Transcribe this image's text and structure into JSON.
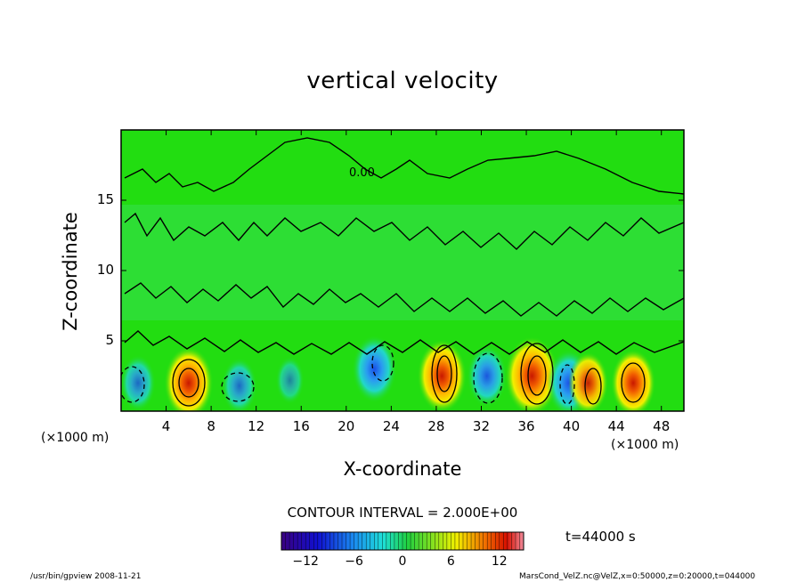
{
  "chart_data": {
    "type": "heatmap",
    "title": "vertical velocity",
    "xlabel": "X-coordinate",
    "ylabel": "Z-coordinate",
    "x_unit_label": "(×1000 m)",
    "xlim": [
      0,
      50
    ],
    "ylim": [
      0,
      20
    ],
    "x_ticks": [
      "4",
      "8",
      "12",
      "16",
      "20",
      "24",
      "28",
      "32",
      "36",
      "40",
      "44",
      "48"
    ],
    "y_ticks": [
      "5",
      "10",
      "15"
    ],
    "contour_label": "0.00",
    "contour_interval_text": "CONTOUR INTERVAL = 2.000E+00",
    "contour_interval": 2.0,
    "colorbar": {
      "range": [
        -15,
        15
      ],
      "ticks": [
        "−12",
        "−6",
        "0",
        "6",
        "12"
      ],
      "tick_values": [
        -12,
        -6,
        0,
        6,
        12
      ]
    },
    "cells": [
      {
        "x": 1.5,
        "z": 2.0,
        "value": -6
      },
      {
        "x": 6.0,
        "z": 2.0,
        "value": 12
      },
      {
        "x": 10.5,
        "z": 1.8,
        "value": -6
      },
      {
        "x": 15.0,
        "z": 2.2,
        "value": -3
      },
      {
        "x": 22.5,
        "z": 3.0,
        "value": -10
      },
      {
        "x": 28.5,
        "z": 2.5,
        "value": 12
      },
      {
        "x": 32.5,
        "z": 2.5,
        "value": -8
      },
      {
        "x": 36.5,
        "z": 2.5,
        "value": 14
      },
      {
        "x": 39.8,
        "z": 2.0,
        "value": -10
      },
      {
        "x": 41.5,
        "z": 2.0,
        "value": 8
      },
      {
        "x": 45.5,
        "z": 2.0,
        "value": 10
      }
    ]
  },
  "annotations": {
    "time": "t=44000 s",
    "footer_left": "/usr/bin/gpview  2008-11-21",
    "footer_right": "MarsCond_VelZ.nc@VelZ,x=0:50000,z=0:20000,t=044000"
  },
  "colors": {
    "background_field": "#22dd11",
    "positive_peak": "#dd2200",
    "negative_peak": "#0055ee"
  }
}
